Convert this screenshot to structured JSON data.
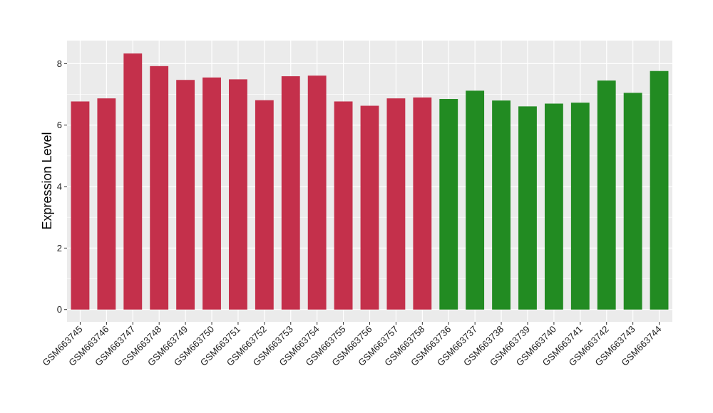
{
  "chart_data": {
    "type": "bar",
    "title": "",
    "xlabel": "",
    "ylabel": "Expression Level",
    "ylim": [
      -0.4,
      8.75
    ],
    "yticks": [
      0,
      2,
      4,
      6,
      8
    ],
    "grid": true,
    "legend": "none",
    "categories": [
      "GSM663745",
      "GSM663746",
      "GSM663747",
      "GSM663748",
      "GSM663749",
      "GSM663750",
      "GSM663751",
      "GSM663752",
      "GSM663753",
      "GSM663754",
      "GSM663755",
      "GSM663756",
      "GSM663757",
      "GSM663758",
      "GSM663736",
      "GSM663737",
      "GSM663738",
      "GSM663739",
      "GSM663740",
      "GSM663741",
      "GSM663742",
      "GSM663743",
      "GSM663744"
    ],
    "values": [
      6.77,
      6.87,
      8.33,
      7.92,
      7.47,
      7.55,
      7.49,
      6.81,
      7.59,
      7.61,
      6.77,
      6.63,
      6.87,
      6.9,
      6.85,
      7.12,
      6.8,
      6.61,
      6.7,
      6.73,
      7.45,
      7.05,
      7.76
    ],
    "bar_colors": [
      "#c4304b",
      "#c4304b",
      "#c4304b",
      "#c4304b",
      "#c4304b",
      "#c4304b",
      "#c4304b",
      "#c4304b",
      "#c4304b",
      "#c4304b",
      "#c4304b",
      "#c4304b",
      "#c4304b",
      "#c4304b",
      "#228b22",
      "#228b22",
      "#228b22",
      "#228b22",
      "#228b22",
      "#228b22",
      "#228b22",
      "#228b22",
      "#228b22"
    ]
  },
  "colors": {
    "panel_background": "#ebebeb",
    "grid": "#ffffff"
  }
}
